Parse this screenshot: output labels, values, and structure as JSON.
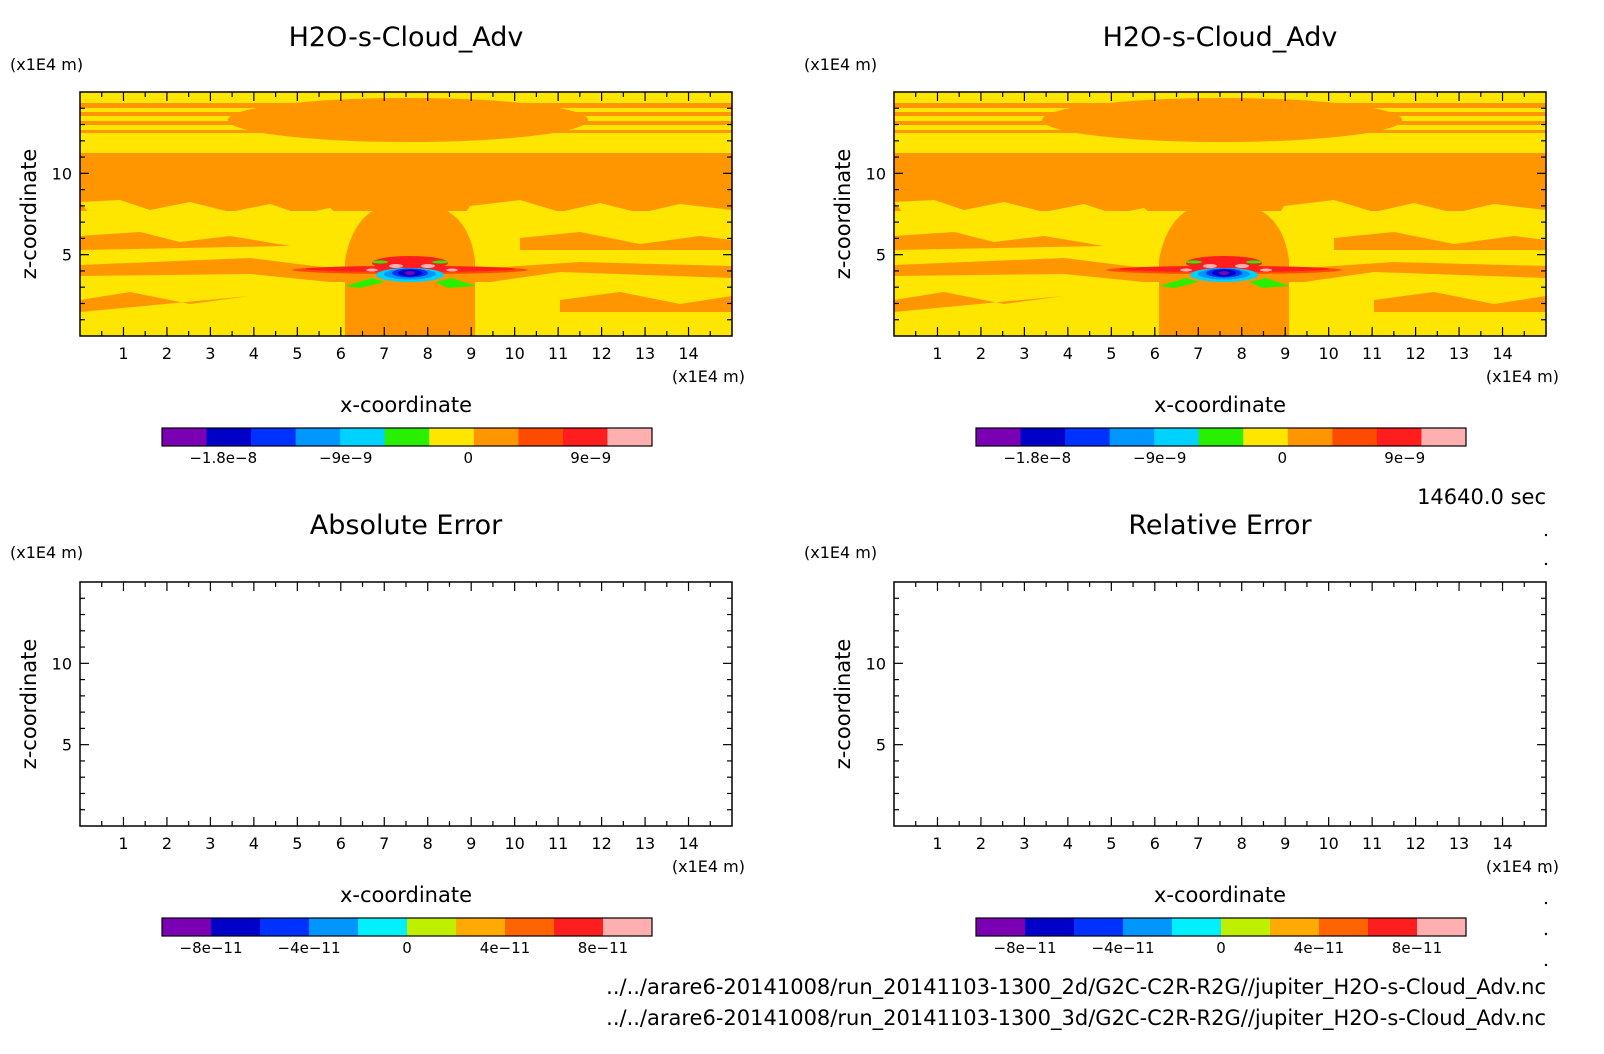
{
  "figure": {
    "time_label": "14640.0 sec",
    "files": [
      "../../arare6-20141008/run_20141103-1300_2d/G2C-C2R-R2G//jupiter_H2O-s-Cloud_Adv.nc",
      "../../arare6-20141008/run_20141103-1300_3d/G2C-C2R-R2G//jupiter_H2O-s-Cloud_Adv.nc"
    ]
  },
  "chart_data": [
    {
      "type": "heatmap",
      "title": "H2O-s-Cloud_Adv",
      "xlabel": "x-coordinate",
      "ylabel": "z-coordinate",
      "x_unit": "(x1E4 m)",
      "y_unit": "(x1E4 m)",
      "xlim": [
        0,
        15
      ],
      "ylim": [
        0,
        15
      ],
      "x_ticks": [
        1,
        2,
        3,
        4,
        5,
        6,
        7,
        8,
        9,
        10,
        11,
        12,
        13,
        14
      ],
      "y_ticks": [
        5,
        10
      ],
      "field": "filled contours; mostly near-zero values with a localized dipole near x≈7.6, z≈4",
      "colorbar": {
        "colors": [
          "#7B00B4",
          "#0000C8",
          "#0032FF",
          "#0096FF",
          "#00D2FF",
          "#28F000",
          "#FFE600",
          "#FF9600",
          "#FF4B00",
          "#FF1E1E",
          "#FFAFAF"
        ],
        "tick_labels": [
          "−1.8e−8",
          "−9e−9",
          "0",
          "9e−9"
        ],
        "tick_values": [
          -1.8e-08,
          -9e-09,
          0,
          9e-09
        ],
        "range": [
          -2.25e-08,
          1.35e-08
        ]
      }
    },
    {
      "type": "heatmap",
      "title": "H2O-s-Cloud_Adv",
      "xlabel": "x-coordinate",
      "ylabel": "z-coordinate",
      "x_unit": "(x1E4 m)",
      "y_unit": "(x1E4 m)",
      "xlim": [
        0,
        15
      ],
      "ylim": [
        0,
        15
      ],
      "x_ticks": [
        1,
        2,
        3,
        4,
        5,
        6,
        7,
        8,
        9,
        10,
        11,
        12,
        13,
        14
      ],
      "y_ticks": [
        5,
        10
      ],
      "field": "identical to left panel",
      "colorbar": {
        "colors": [
          "#7B00B4",
          "#0000C8",
          "#0032FF",
          "#0096FF",
          "#00D2FF",
          "#28F000",
          "#FFE600",
          "#FF9600",
          "#FF4B00",
          "#FF1E1E",
          "#FFAFAF"
        ],
        "tick_labels": [
          "−1.8e−8",
          "−9e−9",
          "0",
          "9e−9"
        ],
        "tick_values": [
          -1.8e-08,
          -9e-09,
          0,
          9e-09
        ],
        "range": [
          -2.25e-08,
          1.35e-08
        ]
      }
    },
    {
      "type": "heatmap",
      "title": "Absolute Error",
      "xlabel": "x-coordinate",
      "ylabel": "z-coordinate",
      "x_unit": "(x1E4 m)",
      "y_unit": "(x1E4 m)",
      "xlim": [
        0,
        15
      ],
      "ylim": [
        0,
        15
      ],
      "x_ticks": [
        1,
        2,
        3,
        4,
        5,
        6,
        7,
        8,
        9,
        10,
        11,
        12,
        13,
        14
      ],
      "y_ticks": [
        5,
        10
      ],
      "field": "blank (all zero)",
      "colorbar": {
        "colors": [
          "#7B00B4",
          "#0000C8",
          "#0032FF",
          "#0096FF",
          "#00F0FF",
          "#BEF000",
          "#FFAA00",
          "#FF6400",
          "#FF1E1E",
          "#FFAFAF"
        ],
        "tick_labels": [
          "−8e−11",
          "−4e−11",
          "0",
          "4e−11",
          "8e−11"
        ],
        "tick_values": [
          -8e-11,
          -4e-11,
          0,
          4e-11,
          8e-11
        ],
        "range": [
          -1e-10,
          1e-10
        ]
      }
    },
    {
      "type": "heatmap",
      "title": "Relative Error",
      "xlabel": "x-coordinate",
      "ylabel": "z-coordinate",
      "x_unit": "(x1E4 m)",
      "y_unit": "(x1E4 m)",
      "xlim": [
        0,
        15
      ],
      "ylim": [
        0,
        15
      ],
      "x_ticks": [
        1,
        2,
        3,
        4,
        5,
        6,
        7,
        8,
        9,
        10,
        11,
        12,
        13,
        14
      ],
      "y_ticks": [
        5,
        10
      ],
      "field": "blank (all zero)",
      "colorbar": {
        "colors": [
          "#7B00B4",
          "#0000C8",
          "#0032FF",
          "#0096FF",
          "#00F0FF",
          "#BEF000",
          "#FFAA00",
          "#FF6400",
          "#FF1E1E",
          "#FFAFAF"
        ],
        "tick_labels": [
          "−8e−11",
          "−4e−11",
          "0",
          "4e−11",
          "8e−11"
        ],
        "tick_values": [
          -8e-11,
          -4e-11,
          0,
          4e-11,
          8e-11
        ],
        "range": [
          -1e-10,
          1e-10
        ]
      }
    }
  ]
}
